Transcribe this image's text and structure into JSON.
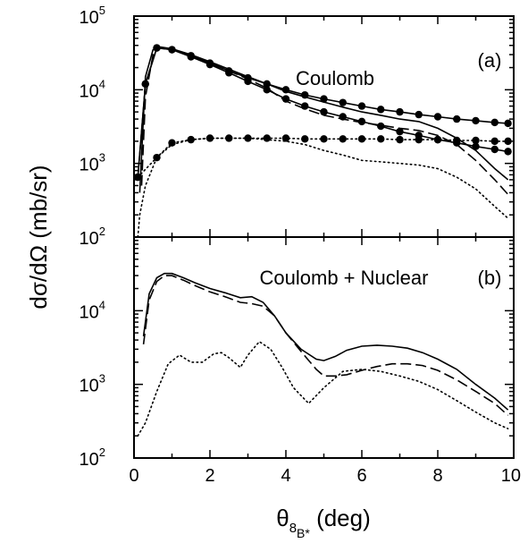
{
  "chart_data": [
    {
      "panel": "(a)",
      "type": "line",
      "title": "Coulomb",
      "label": "(a)",
      "xlim": [
        0,
        10
      ],
      "ylim": [
        100,
        100000
      ],
      "yscale": "log",
      "series": [
        {
          "style": "solid",
          "x": [
            0.15,
            0.3,
            0.5,
            0.7,
            1.0,
            1.5,
            2.0,
            2.5,
            3.0,
            3.5,
            4.0,
            4.5,
            5.0,
            5.5,
            6.0,
            6.5,
            7.0,
            7.5,
            8.0,
            8.5,
            9.0,
            9.5,
            9.85
          ],
          "y": [
            400,
            15000,
            35000,
            38000,
            36000,
            30000,
            24000,
            19000,
            15000,
            12000,
            9500,
            8000,
            6800,
            5800,
            5000,
            4500,
            4000,
            3700,
            3000,
            2200,
            1500,
            850,
            600
          ]
        },
        {
          "style": "dashed",
          "x": [
            0.2,
            0.3,
            0.5,
            0.7,
            1.0,
            1.5,
            2.0,
            2.5,
            3.0,
            3.5,
            4.0,
            4.5,
            5.0,
            5.5,
            6.0,
            6.5,
            7.0,
            7.5,
            8.0,
            8.5,
            9.0,
            9.5,
            9.85
          ],
          "y": [
            500,
            8000,
            30000,
            37000,
            36000,
            29000,
            23000,
            18000,
            14000,
            10500,
            7000,
            5500,
            4500,
            4000,
            3600,
            3300,
            3000,
            2800,
            2400,
            1800,
            1100,
            600,
            380
          ]
        },
        {
          "style": "dotted",
          "x": [
            0.1,
            0.15,
            0.3,
            0.6,
            1.0,
            1.5,
            2.0,
            2.5,
            3.0,
            3.5,
            4.0,
            4.5,
            5.0,
            5.5,
            6.0,
            6.5,
            7.0,
            7.5,
            8.0,
            8.5,
            9.0,
            9.5,
            9.85
          ],
          "y": [
            100,
            200,
            500,
            1200,
            1800,
            2100,
            2200,
            2200,
            2200,
            2100,
            2000,
            1800,
            1500,
            1300,
            1100,
            1050,
            1000,
            950,
            850,
            650,
            450,
            260,
            180
          ]
        },
        {
          "style": "solid-dots",
          "x": [
            0.1,
            0.3,
            0.6,
            1.0,
            1.5,
            2.0,
            2.5,
            3.0,
            3.5,
            4.0,
            4.5,
            5.0,
            5.5,
            6.0,
            6.5,
            7.0,
            7.5,
            8.0,
            8.5,
            9.0,
            9.5,
            9.85
          ],
          "y": [
            650,
            12000,
            37000,
            35000,
            29000,
            23000,
            18000,
            14500,
            12000,
            10000,
            8500,
            7500,
            6700,
            6000,
            5400,
            5000,
            4600,
            4300,
            4000,
            3800,
            3600,
            3500
          ]
        },
        {
          "style": "solid-dots",
          "x": [
            0.1,
            0.3,
            0.6,
            1.0,
            1.5,
            2.0,
            2.5,
            3.0,
            3.5,
            4.0,
            4.5,
            5.0,
            5.5,
            6.0,
            6.5,
            7.0,
            7.5,
            8.0,
            8.5,
            9.0,
            9.5,
            9.85
          ],
          "y": [
            650,
            12000,
            37000,
            35000,
            28000,
            22000,
            17000,
            13000,
            10000,
            7500,
            6000,
            5000,
            4300,
            3700,
            3200,
            2700,
            2400,
            2100,
            1900,
            1700,
            1550,
            1450
          ]
        },
        {
          "style": "dotted-dots",
          "x": [
            0.1,
            0.6,
            1.0,
            1.5,
            2.0,
            2.5,
            3.0,
            3.5,
            4.0,
            4.5,
            5.0,
            5.5,
            6.0,
            6.5,
            7.0,
            7.5,
            8.0,
            8.5,
            9.0,
            9.5,
            9.85
          ],
          "y": [
            650,
            1200,
            1900,
            2100,
            2200,
            2200,
            2200,
            2200,
            2200,
            2150,
            2150,
            2150,
            2150,
            2150,
            2100,
            2100,
            2100,
            2050,
            2050,
            2000,
            2000
          ]
        }
      ]
    },
    {
      "panel": "(b)",
      "type": "line",
      "title": "Coulomb + Nuclear",
      "label": "(b)",
      "xlim": [
        0,
        10
      ],
      "ylim": [
        100,
        100000
      ],
      "yscale": "log",
      "series": [
        {
          "style": "solid",
          "x": [
            0.25,
            0.4,
            0.6,
            0.8,
            1.0,
            1.3,
            1.6,
            2.0,
            2.4,
            2.8,
            3.1,
            3.4,
            3.7,
            4.0,
            4.4,
            4.8,
            5.0,
            5.3,
            5.6,
            6.0,
            6.4,
            6.8,
            7.2,
            7.6,
            8.0,
            8.5,
            9.0,
            9.5,
            9.85
          ],
          "y": [
            4500,
            17000,
            28000,
            32000,
            32000,
            28000,
            24000,
            20000,
            17500,
            15000,
            15500,
            13000,
            8500,
            5000,
            3000,
            2200,
            2100,
            2400,
            2900,
            3300,
            3400,
            3300,
            3100,
            2700,
            2200,
            1600,
            1000,
            650,
            450
          ]
        },
        {
          "style": "dashed",
          "x": [
            0.25,
            0.4,
            0.6,
            0.8,
            1.0,
            1.3,
            1.6,
            2.0,
            2.4,
            2.8,
            3.1,
            3.4,
            3.7,
            4.0,
            4.4,
            4.8,
            5.0,
            5.3,
            5.6,
            6.0,
            6.4,
            6.8,
            7.2,
            7.6,
            8.0,
            8.5,
            9.0,
            9.5,
            9.85
          ],
          "y": [
            3500,
            14000,
            25000,
            30000,
            30000,
            26000,
            22000,
            18000,
            15500,
            13000,
            12500,
            11500,
            8500,
            5000,
            2800,
            1600,
            1300,
            1300,
            1350,
            1550,
            1750,
            1900,
            1900,
            1800,
            1550,
            1150,
            800,
            550,
            380
          ]
        },
        {
          "style": "dotted",
          "x": [
            0.1,
            0.3,
            0.6,
            0.9,
            1.2,
            1.5,
            1.8,
            2.1,
            2.3,
            2.5,
            2.8,
            3.0,
            3.3,
            3.6,
            3.9,
            4.2,
            4.6,
            5.0,
            5.5,
            6.0,
            6.5,
            7.0,
            7.5,
            8.0,
            8.5,
            9.0,
            9.5,
            9.85
          ],
          "y": [
            200,
            300,
            800,
            1900,
            2500,
            2000,
            2000,
            2600,
            2700,
            2300,
            1700,
            2500,
            3800,
            3000,
            1700,
            900,
            550,
            900,
            1500,
            1600,
            1500,
            1300,
            1100,
            850,
            600,
            420,
            300,
            250
          ]
        }
      ]
    }
  ],
  "axes": {
    "xlabel_main": "θ",
    "xlabel_sub1": "8",
    "xlabel_sub2": "B*",
    "xlabel_unit": " (deg)",
    "ylabel": "dσ/dΩ (mb/sr)",
    "x_ticks": [
      "0",
      "2",
      "4",
      "6",
      "8",
      "10"
    ],
    "y_ticks": [
      {
        "base": "10",
        "exp": "2"
      },
      {
        "base": "10",
        "exp": "3"
      },
      {
        "base": "10",
        "exp": "4"
      },
      {
        "base": "10",
        "exp": "5"
      }
    ]
  }
}
